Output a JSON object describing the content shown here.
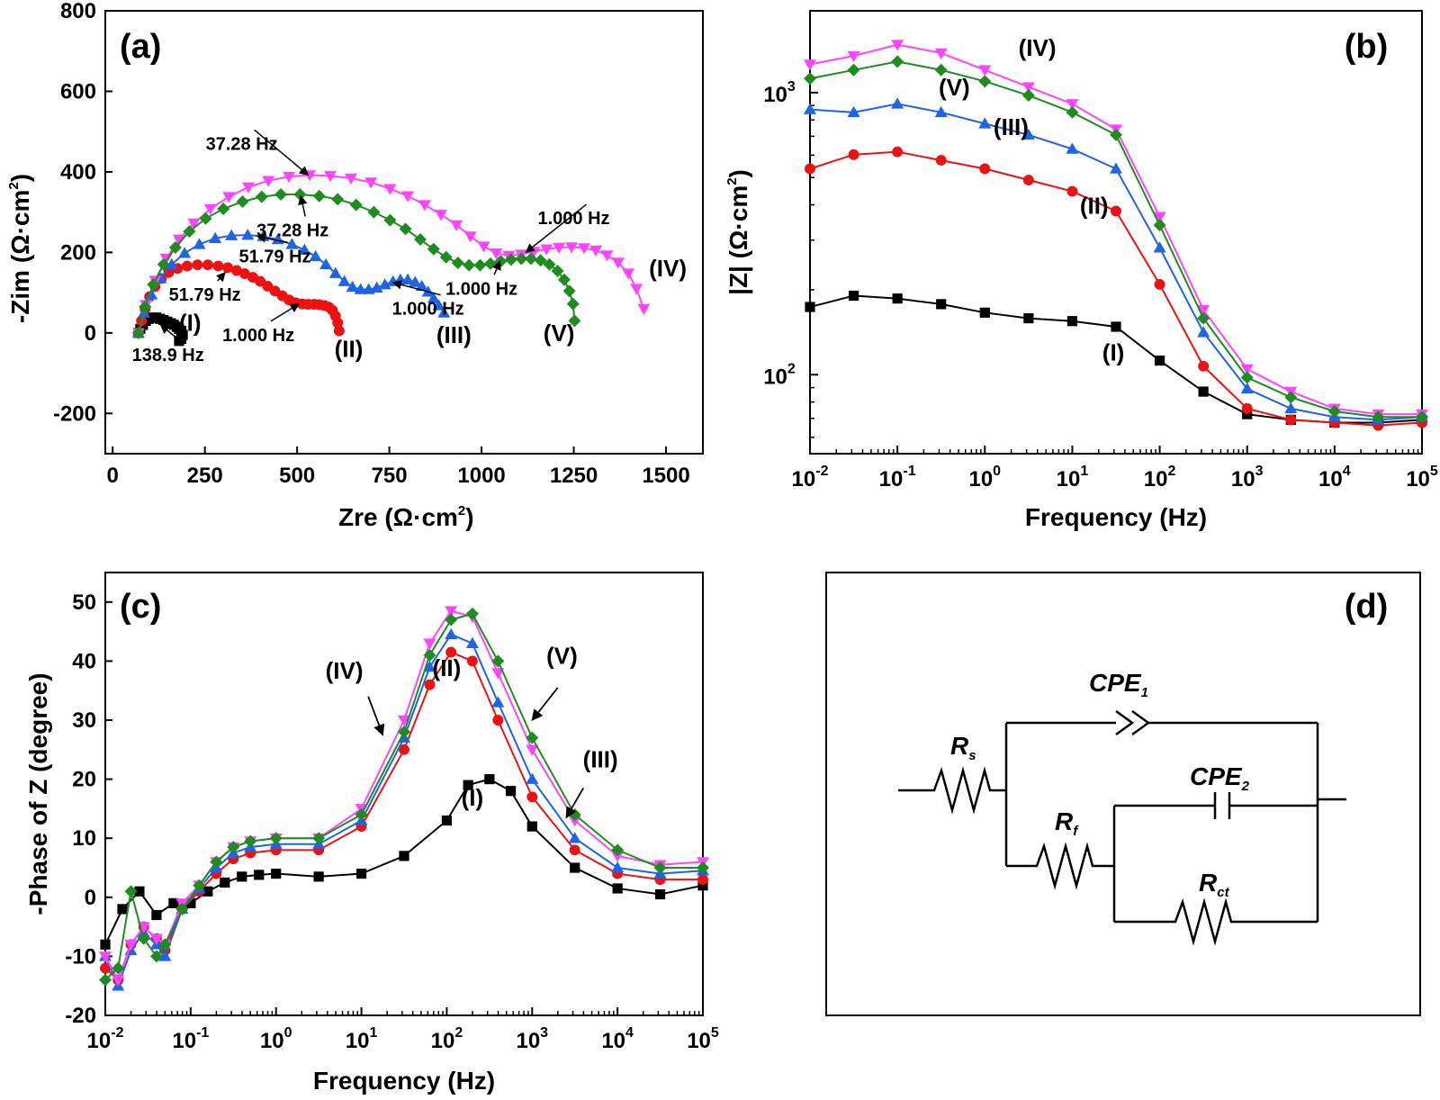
{
  "colors": {
    "I": "#000000",
    "II": "#ee1111",
    "III": "#1e64e6",
    "IV": "#ff44ff",
    "V": "#1e8c1e"
  },
  "chart_data": [
    {
      "id": "a",
      "panel_label": "(a)",
      "type": "scatter",
      "xlabel": "Zre (Ω·cm",
      "xlabel_sup": "2",
      "xlabel_close": ")",
      "ylabel": "-Zim (Ω·cm",
      "ylabel_sup": "2",
      "ylabel_close": ")",
      "xlim": [
        -20,
        1600
      ],
      "ylim": [
        -300,
        800
      ],
      "xticks": [
        0,
        250,
        500,
        750,
        1000,
        1250,
        1500
      ],
      "xtick_labels": [
        "0",
        "250",
        "500",
        "750",
        "1000",
        "1250",
        "1500"
      ],
      "yticks": [
        -200,
        0,
        200,
        400,
        600,
        800
      ],
      "ytick_labels": [
        "-200",
        "0",
        "200",
        "400",
        "600",
        "800"
      ],
      "series": [
        {
          "name": "(I)",
          "color": "I",
          "marker": "square",
          "x": [
            70,
            75,
            82,
            90,
            98,
            108,
            118,
            128,
            138,
            148,
            158,
            166,
            174,
            180,
            186,
            190,
            186,
            180
          ],
          "y": [
            0,
            10,
            20,
            30,
            35,
            38,
            38,
            35,
            32,
            28,
            24,
            20,
            15,
            10,
            5,
            -5,
            -15,
            -20
          ]
        },
        {
          "name": "(II)",
          "color": "II",
          "marker": "circle",
          "x": [
            70,
            78,
            88,
            100,
            115,
            132,
            152,
            176,
            202,
            230,
            258,
            286,
            312,
            336,
            358,
            380,
            400,
            420,
            440,
            460,
            478,
            496,
            514,
            530,
            546,
            560,
            574,
            586,
            596,
            604,
            610,
            614
          ],
          "y": [
            0,
            30,
            60,
            90,
            115,
            135,
            150,
            160,
            166,
            169,
            169,
            166,
            162,
            155,
            147,
            138,
            128,
            116,
            104,
            92,
            82,
            75,
            72,
            71,
            71,
            70,
            68,
            64,
            56,
            42,
            25,
            5
          ]
        },
        {
          "name": "(III)",
          "color": "III",
          "marker": "triangle-up",
          "x": [
            70,
            85,
            105,
            130,
            160,
            195,
            235,
            278,
            322,
            366,
            408,
            448,
            486,
            520,
            550,
            578,
            604,
            628,
            650,
            672,
            694,
            716,
            738,
            760,
            780,
            800,
            820,
            838,
            855,
            870,
            884,
            898
          ],
          "y": [
            0,
            50,
            95,
            135,
            170,
            198,
            220,
            235,
            242,
            243,
            240,
            232,
            220,
            206,
            190,
            170,
            148,
            128,
            114,
            108,
            108,
            112,
            120,
            128,
            132,
            132,
            126,
            116,
            102,
            86,
            68,
            50
          ]
        },
        {
          "name": "(IV)",
          "color": "IV",
          "marker": "triangle-down",
          "x": [
            70,
            90,
            115,
            145,
            180,
            220,
            265,
            315,
            368,
            422,
            478,
            534,
            590,
            646,
            700,
            752,
            800,
            846,
            890,
            932,
            970,
            1006,
            1040,
            1074,
            1108,
            1142,
            1176,
            1210,
            1244,
            1278,
            1310,
            1340,
            1370,
            1398,
            1420,
            1440
          ],
          "y": [
            0,
            70,
            130,
            185,
            232,
            272,
            308,
            338,
            362,
            378,
            388,
            392,
            390,
            384,
            374,
            358,
            340,
            318,
            294,
            268,
            240,
            215,
            198,
            192,
            195,
            202,
            208,
            212,
            213,
            211,
            205,
            193,
            175,
            148,
            110,
            60
          ]
        },
        {
          "name": "(V)",
          "color": "V",
          "marker": "diamond",
          "x": [
            70,
            88,
            110,
            138,
            170,
            208,
            252,
            300,
            352,
            404,
            456,
            508,
            560,
            610,
            660,
            708,
            752,
            794,
            834,
            870,
            904,
            936,
            966,
            996,
            1024,
            1052,
            1080,
            1108,
            1134,
            1160,
            1184,
            1206,
            1224,
            1238,
            1248,
            1252
          ],
          "y": [
            0,
            65,
            120,
            170,
            212,
            252,
            284,
            308,
            326,
            338,
            344,
            344,
            340,
            332,
            318,
            300,
            280,
            258,
            232,
            208,
            188,
            174,
            168,
            168,
            172,
            178,
            182,
            184,
            184,
            180,
            170,
            154,
            132,
            104,
            72,
            30
          ]
        }
      ],
      "series_labels": [
        {
          "text": "(I)",
          "x": 210,
          "y": 5
        },
        {
          "text": "(II)",
          "x": 640,
          "y": -60
        },
        {
          "text": "(III)",
          "x": 925,
          "y": -25
        },
        {
          "text": "(IV)",
          "x": 1505,
          "y": 140
        },
        {
          "text": "(V)",
          "x": 1210,
          "y": -20
        }
      ],
      "annotations": [
        {
          "text": "138.9 Hz",
          "x": 150,
          "y": -70,
          "ax": 130,
          "ay": 20
        },
        {
          "text": "51.79 Hz",
          "x": 250,
          "y": 80,
          "ax": 305,
          "ay": 150
        },
        {
          "text": "1.000 Hz",
          "x": 395,
          "y": -20,
          "ax": 505,
          "ay": 72
        },
        {
          "text": "51.79 Hz",
          "x": 440,
          "y": 175,
          "ax": 392,
          "ay": 240
        },
        {
          "text": "1.000 Hz",
          "x": 855,
          "y": 45,
          "ax": 760,
          "ay": 125
        },
        {
          "text": "37.28 Hz",
          "x": 488,
          "y": 240,
          "ax": 510,
          "ay": 340
        },
        {
          "text": "1.000 Hz",
          "x": 1000,
          "y": 95,
          "ax": 1050,
          "ay": 178
        },
        {
          "text": "37.28 Hz",
          "x": 350,
          "y": 455,
          "ax": 530,
          "ay": 392
        },
        {
          "text": "1.000 Hz",
          "x": 1250,
          "y": 270,
          "ax": 1120,
          "ay": 200
        }
      ]
    },
    {
      "id": "b",
      "panel_label": "(b)",
      "type": "line",
      "xlabel": "Frequency (Hz)",
      "ylabel": "|Z| (Ω·cm",
      "ylabel_sup": "2",
      "ylabel_close": ")",
      "xscale": "log",
      "yscale": "log",
      "xlim_exp": [
        -2,
        5
      ],
      "ylim_exp": [
        1.72,
        3.29
      ],
      "xtick_exps": [
        -2,
        -1,
        0,
        1,
        2,
        3,
        4,
        5
      ],
      "ytick_exps": [
        2,
        3
      ],
      "series_labels": [
        {
          "text": "(I)",
          "fx": 1.47,
          "fz": 2.05
        },
        {
          "text": "(II)",
          "fx": 1.25,
          "fz": 2.57
        },
        {
          "text": "(III)",
          "fx": 0.3,
          "fz": 2.85
        },
        {
          "text": "(IV)",
          "fx": 0.6,
          "fz": 3.13
        },
        {
          "text": "(V)",
          "fx": -0.35,
          "fz": 2.99
        }
      ],
      "series": [
        {
          "name": "(I)",
          "color": "I",
          "marker": "square",
          "logf": [
            -2,
            -1.5,
            -1,
            -0.5,
            0,
            0.5,
            1,
            1.5,
            2,
            2.5,
            3,
            3.5,
            4,
            4.5,
            5
          ],
          "logz": [
            2.24,
            2.28,
            2.27,
            2.25,
            2.22,
            2.2,
            2.19,
            2.17,
            2.05,
            1.94,
            1.86,
            1.84,
            1.83,
            1.83,
            1.84
          ]
        },
        {
          "name": "(II)",
          "color": "II",
          "marker": "circle",
          "logf": [
            -2,
            -1.5,
            -1,
            -0.5,
            0,
            0.5,
            1,
            1.5,
            2,
            2.5,
            3,
            3.5,
            4,
            4.5,
            5
          ],
          "logz": [
            2.73,
            2.78,
            2.79,
            2.76,
            2.73,
            2.69,
            2.65,
            2.58,
            2.32,
            2.03,
            1.88,
            1.84,
            1.83,
            1.82,
            1.83
          ]
        },
        {
          "name": "(III)",
          "color": "III",
          "marker": "triangle-up",
          "logf": [
            -2,
            -1.5,
            -1,
            -0.5,
            0,
            0.5,
            1,
            1.5,
            2,
            2.5,
            3,
            3.5,
            4,
            4.5,
            5
          ],
          "logz": [
            2.94,
            2.93,
            2.96,
            2.93,
            2.89,
            2.85,
            2.8,
            2.73,
            2.45,
            2.15,
            1.95,
            1.88,
            1.85,
            1.84,
            1.85
          ]
        },
        {
          "name": "(IV)",
          "color": "IV",
          "marker": "triangle-down",
          "logf": [
            -2,
            -1.5,
            -1,
            -0.5,
            0,
            0.5,
            1,
            1.5,
            2,
            2.5,
            3,
            3.5,
            4,
            4.5,
            5
          ],
          "logz": [
            3.1,
            3.13,
            3.17,
            3.14,
            3.08,
            3.02,
            2.96,
            2.87,
            2.56,
            2.23,
            2.02,
            1.94,
            1.88,
            1.86,
            1.86
          ]
        },
        {
          "name": "(V)",
          "color": "V",
          "marker": "diamond",
          "logf": [
            -2,
            -1.5,
            -1,
            -0.5,
            0,
            0.5,
            1,
            1.5,
            2,
            2.5,
            3,
            3.5,
            4,
            4.5,
            5
          ],
          "logz": [
            3.05,
            3.08,
            3.11,
            3.08,
            3.04,
            2.99,
            2.93,
            2.85,
            2.53,
            2.2,
            1.99,
            1.92,
            1.87,
            1.85,
            1.85
          ]
        }
      ]
    },
    {
      "id": "c",
      "panel_label": "(c)",
      "type": "line",
      "xlabel": "Frequency (Hz)",
      "ylabel": "-Phase of Z (degree)",
      "xscale": "log",
      "xlim_exp": [
        -2,
        5
      ],
      "ylim": [
        -20,
        55
      ],
      "xtick_exps": [
        -2,
        -1,
        0,
        1,
        2,
        3,
        4,
        5
      ],
      "yticks": [
        -20,
        -10,
        0,
        10,
        20,
        30,
        40,
        50
      ],
      "ytick_labels": [
        "-20",
        "-10",
        "0",
        "10",
        "20",
        "30",
        "40",
        "50"
      ],
      "series_labels": [
        {
          "text": "(I)",
          "fx": 2.3,
          "fy": 15.5
        },
        {
          "text": "(II)",
          "fx": 2.0,
          "fy": 37.5
        },
        {
          "text": "(III)",
          "fx": 3.8,
          "fy": 22.0
        },
        {
          "text": "(IV)",
          "fx": 0.8,
          "fy": 37.0
        },
        {
          "text": "(V)",
          "fx": 3.35,
          "fy": 39.5
        }
      ],
      "arrows": [
        {
          "fx": 1.08,
          "fy": 34.0,
          "tx": 1.25,
          "ty": 27.5
        },
        {
          "fx": 3.3,
          "fy": 35.5,
          "tx": 3.0,
          "ty": 30.0
        },
        {
          "fx": 3.6,
          "fy": 18.5,
          "tx": 3.4,
          "ty": 13.5
        }
      ],
      "series": [
        {
          "name": "(I)",
          "color": "I",
          "marker": "square",
          "logf": [
            -2,
            -1.8,
            -1.6,
            -1.4,
            -1.2,
            -1,
            -0.8,
            -0.6,
            -0.4,
            -0.2,
            0,
            0.5,
            1,
            1.5,
            2,
            2.25,
            2.5,
            2.75,
            3,
            3.5,
            4,
            4.5,
            5
          ],
          "phase": [
            -8,
            -2,
            1,
            -3,
            -1,
            -1,
            1,
            2.5,
            3.5,
            3.8,
            4,
            3.5,
            4,
            7,
            13,
            19,
            20,
            18,
            12,
            5,
            1.5,
            0.5,
            2
          ]
        },
        {
          "name": "(II)",
          "color": "II",
          "marker": "circle",
          "logf": [
            -2,
            -1.85,
            -1.7,
            -1.55,
            -1.4,
            -1.3,
            -1.1,
            -0.9,
            -0.7,
            -0.5,
            -0.3,
            0,
            0.5,
            1,
            1.5,
            1.8,
            2.05,
            2.3,
            2.6,
            3,
            3.5,
            4,
            4.5,
            5
          ],
          "phase": [
            -12,
            -14,
            -8,
            -5,
            -7,
            -9,
            -2,
            1,
            4,
            6.5,
            7.5,
            8,
            8,
            12,
            25,
            36,
            41.5,
            40,
            30,
            17,
            8,
            4,
            3,
            3
          ]
        },
        {
          "name": "(III)",
          "color": "III",
          "marker": "triangle-up",
          "logf": [
            -2,
            -1.85,
            -1.7,
            -1.55,
            -1.4,
            -1.3,
            -1.1,
            -0.9,
            -0.7,
            -0.5,
            -0.3,
            0,
            0.5,
            1,
            1.5,
            1.8,
            2.05,
            2.3,
            2.6,
            3,
            3.5,
            4,
            4.5,
            5
          ],
          "phase": [
            -10,
            -15,
            -9,
            -6,
            -8,
            -10,
            -2,
            1.5,
            5,
            7.5,
            8.5,
            9,
            9,
            13,
            27,
            39,
            44.5,
            43,
            33,
            20,
            10,
            5,
            4,
            4.5
          ]
        },
        {
          "name": "(IV)",
          "color": "IV",
          "marker": "triangle-down",
          "logf": [
            -2,
            -1.85,
            -1.7,
            -1.55,
            -1.4,
            -1.3,
            -1.1,
            -0.9,
            -0.7,
            -0.5,
            -0.3,
            0,
            0.5,
            1,
            1.5,
            1.8,
            2.05,
            2.3,
            2.6,
            3,
            3.5,
            4,
            4.5,
            5
          ],
          "phase": [
            -10,
            -14,
            -8,
            -5,
            -7,
            -8,
            -1,
            2,
            6,
            8.5,
            9.5,
            10,
            10,
            15,
            30,
            43,
            48.5,
            47.5,
            38,
            25,
            13,
            7,
            5.5,
            6
          ]
        },
        {
          "name": "(V)",
          "color": "V",
          "marker": "diamond",
          "logf": [
            -2,
            -1.85,
            -1.7,
            -1.55,
            -1.4,
            -1.3,
            -1.1,
            -0.9,
            -0.7,
            -0.5,
            -0.3,
            0,
            0.5,
            1,
            1.5,
            1.8,
            2.05,
            2.3,
            2.6,
            3,
            3.5,
            4,
            4.5,
            5
          ],
          "phase": [
            -14,
            -12,
            1,
            -7,
            -10,
            -8,
            -2,
            2,
            6,
            8.5,
            9.5,
            10,
            10,
            14,
            28,
            41,
            47,
            48,
            40,
            27,
            14,
            8,
            5,
            5
          ]
        }
      ]
    }
  ],
  "circuit": {
    "panel_label": "(d)",
    "rs": "R",
    "rs_sub": "s",
    "cpe1": "CPE",
    "cpe1_sub": "1",
    "cpe2": "CPE",
    "cpe2_sub": "2",
    "rf": "R",
    "rf_sub": "f",
    "rct": "R",
    "rct_sub": "ct"
  }
}
